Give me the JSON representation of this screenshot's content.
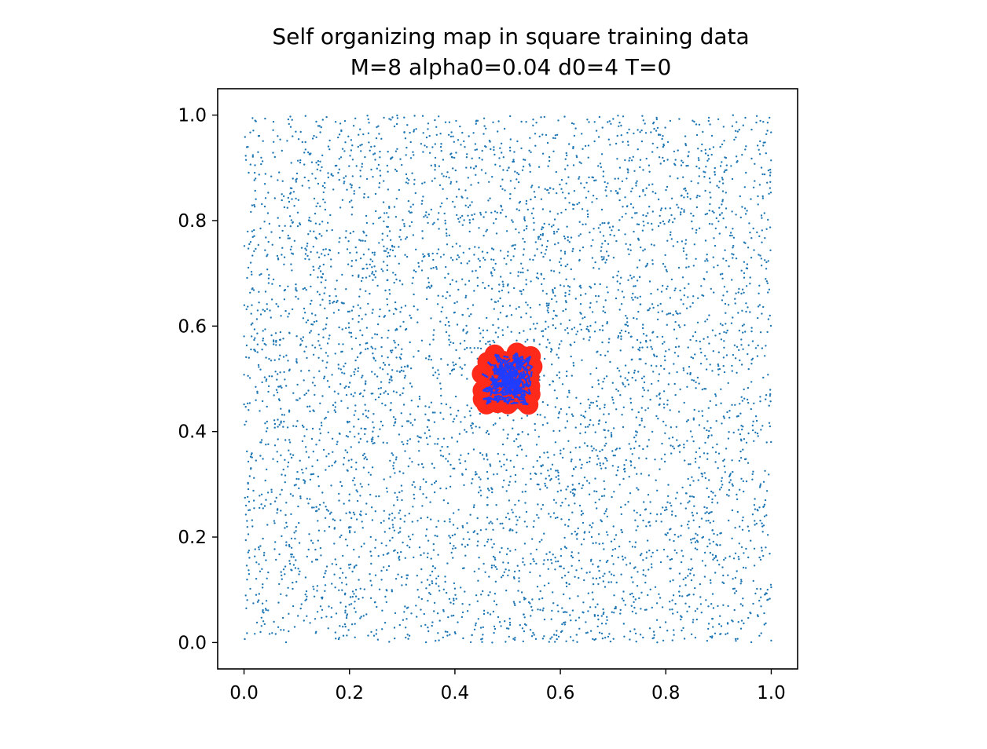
{
  "chart_data": {
    "type": "scatter",
    "title": "Self organizing map in square training data",
    "subtitle": "M=8   alpha0=0.04   d0=4   T=0",
    "xlabel": "",
    "ylabel": "",
    "xlim": [
      -0.05,
      1.05
    ],
    "ylim": [
      -0.05,
      1.05
    ],
    "x_ticks": [
      "0.0",
      "0.2",
      "0.4",
      "0.6",
      "0.8",
      "1.0"
    ],
    "y_ticks": [
      "0.0",
      "0.2",
      "0.4",
      "0.6",
      "0.8",
      "1.0"
    ],
    "x_tick_values": [
      0.0,
      0.2,
      0.4,
      0.6,
      0.8,
      1.0
    ],
    "y_tick_values": [
      0.0,
      0.2,
      0.4,
      0.6,
      0.8,
      1.0
    ],
    "grid": false,
    "legend": "none",
    "series": [
      {
        "role": "training-data",
        "color": "#1f77b4",
        "distribution": "uniform",
        "x_range": [
          0.0,
          1.0
        ],
        "y_range": [
          0.0,
          1.0
        ],
        "count": 5000
      },
      {
        "role": "som-nodes",
        "color": "#ff2a1a",
        "grid_size": [
          8,
          8
        ],
        "x_range": [
          0.45,
          0.55
        ],
        "y_range": [
          0.45,
          0.55
        ]
      },
      {
        "role": "som-connections",
        "color": "#1f3cff",
        "line_style": "dashed"
      }
    ]
  }
}
